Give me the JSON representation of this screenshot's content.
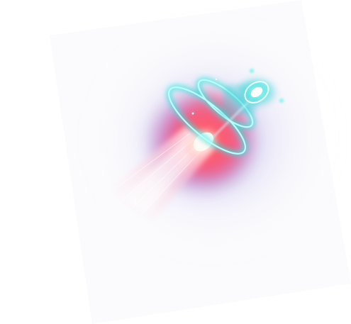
{
  "effect": {
    "icon": "energy-cannon-blast-icon",
    "colors": {
      "background": "#ffffff",
      "glow_outer": "#7a6fc4",
      "glow_core": "#ff4b6e",
      "glow_hot": "#ff8a5a",
      "ring": "#38e6e0",
      "ring_bright": "#b8fffb",
      "beam": "#ffd8e2",
      "muzzle": "#fff3ea"
    }
  }
}
